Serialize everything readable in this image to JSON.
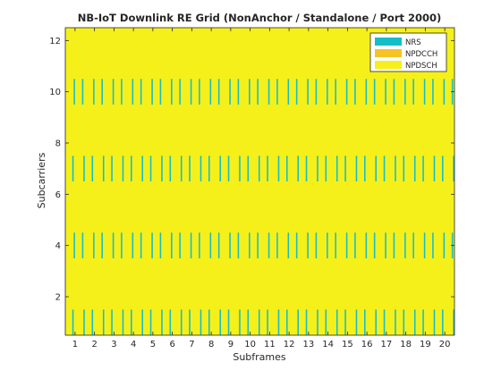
{
  "chart_data": {
    "type": "heatmap",
    "title": "NB-IoT Downlink RE Grid (NonAnchor / Standalone / Port 2000)",
    "xlabel": "Subframes",
    "ylabel": "Subcarriers",
    "xlim": [
      0.5,
      20.5
    ],
    "ylim": [
      0.5,
      12.5
    ],
    "x_ticks": [
      "1",
      "2",
      "3",
      "4",
      "5",
      "6",
      "7",
      "8",
      "9",
      "10",
      "11",
      "12",
      "13",
      "14",
      "15",
      "16",
      "17",
      "18",
      "19",
      "20"
    ],
    "y_ticks": [
      "2",
      "4",
      "6",
      "8",
      "10",
      "12"
    ],
    "x_tick_values": [
      1,
      2,
      3,
      4,
      5,
      6,
      7,
      8,
      9,
      10,
      11,
      12,
      13,
      14,
      15,
      16,
      17,
      18,
      19,
      20
    ],
    "y_tick_values": [
      2,
      4,
      6,
      8,
      10,
      12
    ],
    "grid": false,
    "legend_position": "top-right",
    "legend": [
      {
        "name": "NRS",
        "color": "#14bec8"
      },
      {
        "name": "NPDCCH",
        "color": "#f5c326"
      },
      {
        "name": "NPDSCH",
        "color": "#f5f01a"
      }
    ],
    "background_channel": "NPDSCH",
    "symbols_per_subframe": 14,
    "nrs_symbols_in_subframe": [
      6,
      7,
      13,
      14
    ],
    "nrs_subcarriers": {
      "odd_symbol": [
        1,
        7
      ],
      "even_symbol": [
        4,
        10
      ]
    },
    "subframes": 20
  }
}
